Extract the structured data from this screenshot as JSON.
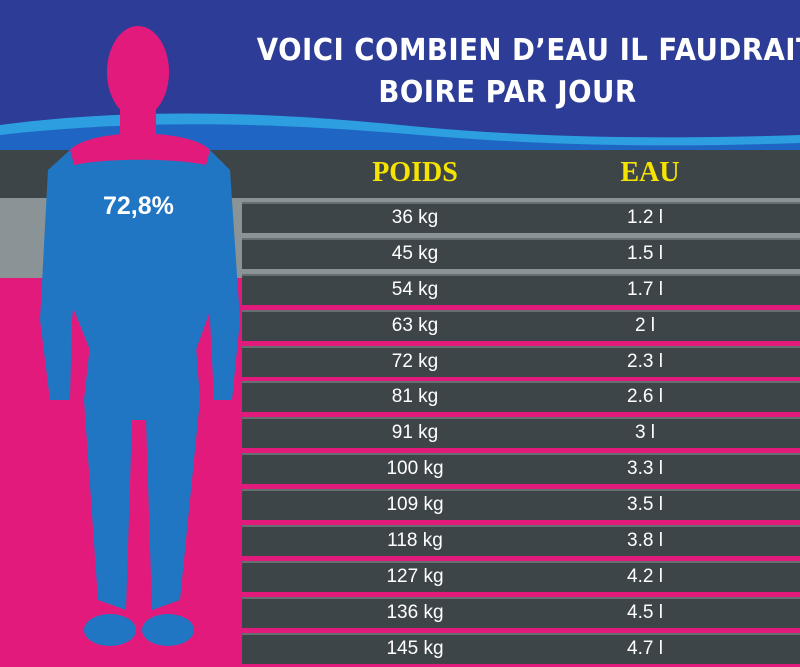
{
  "title_line1": "VOICI COMBIEN D’EAU IL FAUDRAIT",
  "title_line2": "BOIRE PAR JOUR",
  "body_water_percent": "72,8%",
  "colors": {
    "header_blue": "#2d3c96",
    "pink": "#e21a7b",
    "figure_blue": "#2176c4",
    "row_dark": "#3e4549",
    "header_yellow": "#f5e300"
  },
  "chart_data": {
    "type": "table",
    "columns": [
      "POIDS",
      "EAU"
    ],
    "rows": [
      [
        "36 kg",
        "1.2 l"
      ],
      [
        "45 kg",
        "1.5 l"
      ],
      [
        "54 kg",
        "1.7 l"
      ],
      [
        "63 kg",
        "2 l"
      ],
      [
        "72 kg",
        "2.3 l"
      ],
      [
        "81 kg",
        "2.6 l"
      ],
      [
        "91 kg",
        "3 l"
      ],
      [
        "100 kg",
        "3.3 l"
      ],
      [
        "109 kg",
        "3.5 l"
      ],
      [
        "118 kg",
        "3.8 l"
      ],
      [
        "127 kg",
        "4.2 l"
      ],
      [
        "136 kg",
        "4.5 l"
      ],
      [
        "145 kg",
        "4.7 l"
      ]
    ]
  }
}
